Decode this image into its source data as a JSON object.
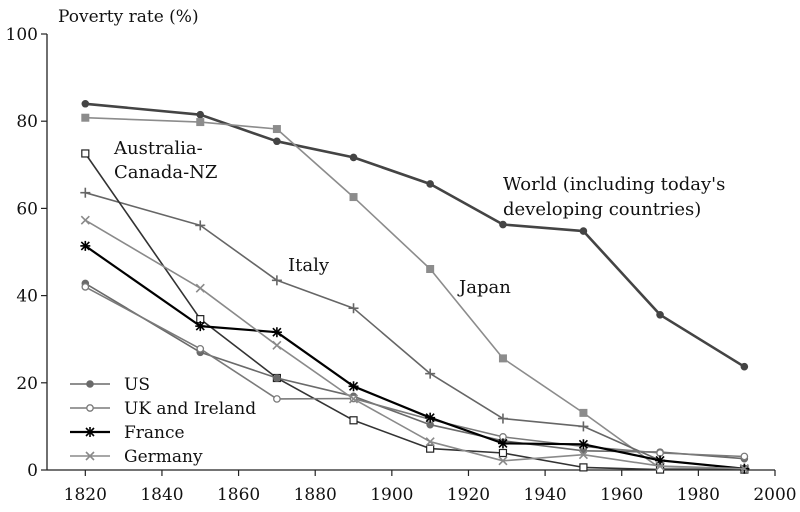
{
  "chart_data": {
    "type": "line",
    "ylabel": "Poverty rate (%)",
    "xlabel": "",
    "xlim": [
      1810,
      2000
    ],
    "ylim": [
      0,
      100
    ],
    "x_ticks": [
      1820,
      1840,
      1860,
      1880,
      1900,
      1920,
      1940,
      1960,
      1980,
      2000
    ],
    "y_ticks": [
      0,
      20,
      40,
      60,
      80,
      100
    ],
    "grid": false,
    "legend_position": "bottom-left",
    "legend": [
      "US",
      "UK and Ireland",
      "France",
      "Germany"
    ],
    "series": [
      {
        "name": "World (including today's developing countries)",
        "color": "#444444",
        "marker": "circle",
        "x": [
          1820,
          1850,
          1870,
          1890,
          1910,
          1929,
          1950,
          1970,
          1992
        ],
        "values": [
          84,
          81.5,
          75.4,
          71.7,
          65.6,
          56.3,
          54.8,
          35.6,
          23.7
        ]
      },
      {
        "name": "Japan",
        "color": "#8c8c8c",
        "marker": "square",
        "x": [
          1820,
          1850,
          1870,
          1890,
          1910,
          1929,
          1950,
          1970,
          1992
        ],
        "values": [
          80.8,
          79.8,
          78.2,
          62.6,
          46.1,
          25.6,
          13.1,
          0.4,
          0.2
        ]
      },
      {
        "name": "Italy",
        "color": "#666666",
        "marker": "plus",
        "x": [
          1820,
          1850,
          1870,
          1890,
          1910,
          1929,
          1950,
          1970,
          1992
        ],
        "values": [
          63.6,
          56.1,
          43.5,
          37.1,
          22.1,
          11.8,
          10,
          2.2,
          0.3
        ]
      },
      {
        "name": "Australia-Canada-NZ",
        "color": "#333333",
        "marker": "open-square",
        "x": [
          1820,
          1850,
          1870,
          1890,
          1910,
          1929,
          1950,
          1970,
          1992
        ],
        "values": [
          72.6,
          34.6,
          21.1,
          11.4,
          4.9,
          3.9,
          0.6,
          0.1,
          0.1
        ]
      },
      {
        "name": "US",
        "color": "#6a6a6a",
        "marker": "circle",
        "x": [
          1820,
          1850,
          1870,
          1890,
          1910,
          1929,
          1950,
          1970,
          1992
        ],
        "values": [
          42.8,
          27,
          21.1,
          16.9,
          10.4,
          6.7,
          4.4,
          4.1,
          2.6
        ]
      },
      {
        "name": "UK and Ireland",
        "color": "#7a7a7a",
        "marker": "open-circle",
        "x": [
          1820,
          1850,
          1870,
          1890,
          1910,
          1929,
          1950,
          1970,
          1992
        ],
        "values": [
          42,
          27.8,
          16.3,
          16.4,
          11.6,
          7.6,
          5.4,
          3.9,
          3.1
        ]
      },
      {
        "name": "France",
        "color": "#000000",
        "marker": "asterisk",
        "x": [
          1820,
          1850,
          1870,
          1890,
          1910,
          1929,
          1950,
          1970,
          1992
        ],
        "values": [
          51.4,
          33,
          31.6,
          19.2,
          12,
          6.1,
          5.9,
          2.2,
          0.3
        ]
      },
      {
        "name": "Germany",
        "color": "#8a8a8a",
        "marker": "x",
        "x": [
          1820,
          1850,
          1870,
          1890,
          1910,
          1929,
          1950,
          1970,
          1992
        ],
        "values": [
          57.3,
          41.7,
          28.6,
          16.3,
          6.5,
          2.1,
          3.5,
          0.9,
          0.3
        ]
      }
    ],
    "annotations": [
      "World (including today's",
      "developing countries)",
      "Japan",
      "Italy",
      "Australia-",
      "Canada-NZ"
    ]
  }
}
